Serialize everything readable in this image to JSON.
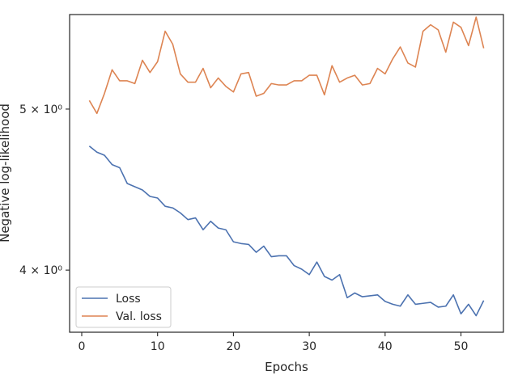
{
  "chart_data": {
    "type": "line",
    "title": "",
    "xlabel": "Epochs",
    "ylabel": "Negative log-likelihood",
    "yscale": "log",
    "xlim": [
      -1.6,
      55.6
    ],
    "ylim": [
      3.67,
      5.7
    ],
    "x_ticks": [
      0,
      10,
      20,
      30,
      40,
      50
    ],
    "x_tick_labels": [
      "0",
      "10",
      "20",
      "30",
      "40",
      "50"
    ],
    "y_ticks": [
      4.0,
      5.0
    ],
    "y_tick_labels": [
      "4 × 10⁰",
      "5 × 10⁰"
    ],
    "grid": false,
    "legend_position": "lower-left",
    "x": [
      1,
      2,
      3,
      4,
      5,
      6,
      7,
      8,
      9,
      10,
      11,
      12,
      13,
      14,
      15,
      16,
      17,
      18,
      19,
      20,
      21,
      22,
      23,
      24,
      25,
      26,
      27,
      28,
      29,
      30,
      31,
      32,
      33,
      34,
      35,
      36,
      37,
      38,
      39,
      40,
      41,
      42,
      43,
      44,
      45,
      46,
      47,
      48,
      49,
      50,
      51,
      52,
      53
    ],
    "series": [
      {
        "name": "Loss",
        "color": "#4c72b0",
        "values": [
          4.75,
          4.71,
          4.69,
          4.63,
          4.61,
          4.51,
          4.49,
          4.47,
          4.43,
          4.42,
          4.37,
          4.36,
          4.33,
          4.29,
          4.3,
          4.23,
          4.28,
          4.24,
          4.23,
          4.16,
          4.15,
          4.145,
          4.1,
          4.135,
          4.075,
          4.08,
          4.08,
          4.025,
          4.005,
          3.975,
          4.045,
          3.965,
          3.945,
          3.975,
          3.85,
          3.875,
          3.855,
          3.86,
          3.865,
          3.83,
          3.815,
          3.805,
          3.865,
          3.815,
          3.82,
          3.825,
          3.8,
          3.805,
          3.865,
          3.765,
          3.815,
          3.755,
          3.835
        ]
      },
      {
        "name": "Val. loss",
        "color": "#dd8452",
        "values": [
          5.06,
          4.97,
          5.11,
          5.28,
          5.2,
          5.2,
          5.18,
          5.35,
          5.26,
          5.34,
          5.57,
          5.47,
          5.25,
          5.19,
          5.19,
          5.29,
          5.15,
          5.22,
          5.16,
          5.12,
          5.25,
          5.26,
          5.09,
          5.11,
          5.18,
          5.17,
          5.17,
          5.2,
          5.2,
          5.24,
          5.24,
          5.1,
          5.31,
          5.19,
          5.22,
          5.24,
          5.17,
          5.18,
          5.29,
          5.25,
          5.36,
          5.45,
          5.33,
          5.3,
          5.57,
          5.62,
          5.58,
          5.41,
          5.64,
          5.6,
          5.46,
          5.68,
          5.44
        ]
      }
    ]
  }
}
